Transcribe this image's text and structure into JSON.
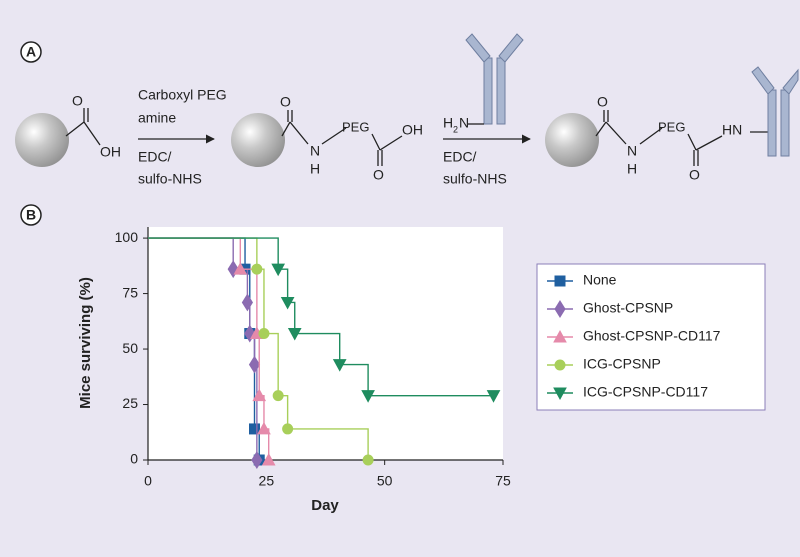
{
  "scheme": {
    "label": "A",
    "reagents1": [
      "Carboxyl PEG",
      "amine"
    ],
    "conditions1": [
      "EDC/",
      "sulfo-NHS"
    ],
    "conditions2": [
      "EDC/",
      "sulfo-NHS"
    ],
    "atoms": [
      "O",
      "OH",
      "O",
      "N",
      "H",
      "PEG",
      "OH",
      "O",
      "H",
      "2",
      "N",
      "O",
      "N",
      "H",
      "PEG",
      "HN",
      "O"
    ]
  },
  "chart_data": {
    "type": "line",
    "panel_label": "B",
    "x_label": "Day",
    "y_label": "Mice surviving (%)",
    "xlim": [
      0,
      75
    ],
    "ylim": [
      0,
      105
    ],
    "xticks": [
      0,
      25,
      50,
      75
    ],
    "yticks": [
      0,
      25,
      50,
      75,
      100
    ],
    "grid": false,
    "legend": "right",
    "series": [
      {
        "name": "None",
        "color": "#1f5fa0",
        "marker": "square",
        "x": [
          0,
          20.5,
          21.5,
          22.5,
          23.5
        ],
        "values": [
          100,
          86,
          57,
          14,
          0
        ]
      },
      {
        "name": "Ghost-CPSNP",
        "color": "#8b6bb1",
        "marker": "diamond",
        "x": [
          0,
          18,
          21,
          21.5,
          22.5,
          23
        ],
        "values": [
          100,
          86,
          71,
          57,
          43,
          0
        ]
      },
      {
        "name": "Ghost-CPSNP-CD117",
        "color": "#e58aaa",
        "marker": "triangle-up",
        "x": [
          0,
          19.5,
          23,
          23.5,
          24.5,
          25.5
        ],
        "values": [
          100,
          86,
          57,
          29,
          14,
          0
        ]
      },
      {
        "name": "ICG-CPSNP",
        "color": "#a8cf5a",
        "marker": "circle",
        "x": [
          0,
          23,
          24.5,
          27.5,
          29.5,
          46.5
        ],
        "values": [
          100,
          86,
          57,
          29,
          14,
          0
        ]
      },
      {
        "name": "ICG-CPSNP-CD117",
        "color": "#1f8c5f",
        "marker": "triangle-down",
        "x": [
          0,
          27.5,
          29.5,
          31,
          40.5,
          46.5,
          73
        ],
        "values": [
          100,
          86,
          71,
          57,
          43,
          29,
          29
        ]
      }
    ]
  }
}
